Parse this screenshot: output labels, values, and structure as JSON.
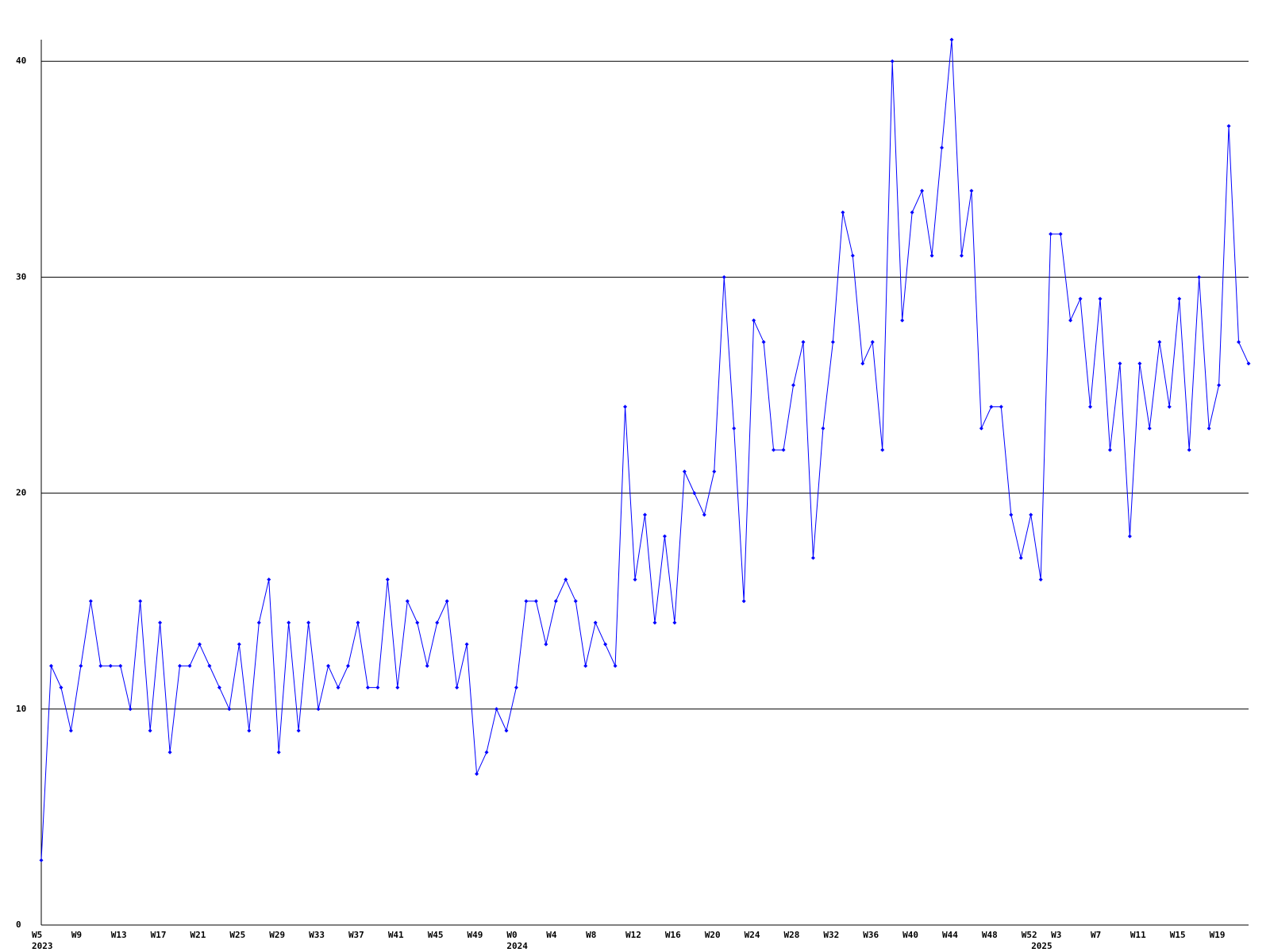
{
  "chart_data": {
    "type": "line",
    "categories": [
      "W5",
      null,
      null,
      null,
      "W9",
      null,
      null,
      null,
      "W13",
      null,
      null,
      null,
      "W17",
      null,
      null,
      null,
      "W21",
      null,
      null,
      null,
      "W25",
      null,
      null,
      null,
      "W29",
      null,
      null,
      null,
      "W33",
      null,
      null,
      null,
      "W37",
      null,
      null,
      null,
      "W41",
      null,
      null,
      null,
      "W45",
      null,
      null,
      null,
      "W49",
      null,
      null,
      null,
      "W0",
      null,
      null,
      null,
      "W4",
      null,
      null,
      null,
      "W8",
      null,
      null,
      null,
      "W12",
      null,
      null,
      null,
      "W16",
      null,
      null,
      null,
      "W20",
      null,
      null,
      null,
      "W24",
      null,
      null,
      null,
      "W28",
      null,
      null,
      null,
      "W32",
      null,
      null,
      null,
      "W36",
      null,
      null,
      null,
      "W40",
      null,
      null,
      null,
      "W44",
      null,
      null,
      null,
      "W48",
      null,
      null,
      null,
      "W52",
      null,
      null,
      "W3",
      null,
      null,
      null,
      "W7",
      null,
      null,
      null,
      "W11",
      null,
      null,
      null,
      "W15",
      null,
      null,
      null,
      "W19",
      null,
      null,
      null
    ],
    "year_labels": [
      "2023",
      null,
      null,
      null,
      null,
      null,
      null,
      null,
      null,
      null,
      null,
      null,
      null,
      null,
      null,
      null,
      null,
      null,
      null,
      null,
      null,
      null,
      null,
      null,
      null,
      null,
      null,
      null,
      null,
      null,
      null,
      null,
      null,
      null,
      null,
      null,
      null,
      null,
      null,
      null,
      null,
      null,
      null,
      null,
      null,
      null,
      null,
      null,
      "2024",
      null,
      null,
      null,
      null,
      null,
      null,
      null,
      null,
      null,
      null,
      null,
      null,
      null,
      null,
      null,
      null,
      null,
      null,
      null,
      null,
      null,
      null,
      null,
      null,
      null,
      null,
      null,
      null,
      null,
      null,
      null,
      null,
      null,
      null,
      null,
      null,
      null,
      null,
      null,
      null,
      null,
      null,
      null,
      null,
      null,
      null,
      null,
      null,
      null,
      null,
      null,
      null,
      "2025",
      null,
      null,
      null,
      null,
      null,
      null,
      null,
      null,
      null,
      null,
      null,
      null,
      null,
      null,
      null,
      null,
      null,
      null,
      null,
      null
    ],
    "values": [
      3,
      12,
      11,
      9,
      12,
      15,
      12,
      12,
      12,
      10,
      15,
      9,
      14,
      8,
      12,
      12,
      13,
      12,
      11,
      10,
      13,
      9,
      14,
      16,
      8,
      14,
      9,
      14,
      10,
      12,
      11,
      12,
      14,
      11,
      11,
      16,
      11,
      15,
      14,
      12,
      14,
      15,
      11,
      13,
      7,
      8,
      10,
      9,
      11,
      15,
      15,
      13,
      15,
      16,
      15,
      12,
      14,
      13,
      12,
      24,
      16,
      19,
      14,
      18,
      14,
      21,
      20,
      19,
      21,
      30,
      23,
      15,
      28,
      27,
      22,
      22,
      25,
      27,
      17,
      23,
      27,
      33,
      31,
      26,
      27,
      22,
      40,
      28,
      33,
      34,
      31,
      36,
      41,
      31,
      34,
      23,
      24,
      24,
      19,
      17,
      19,
      16,
      32,
      32,
      28,
      29,
      24,
      29,
      22,
      26,
      18,
      26,
      23,
      27,
      24,
      29,
      22,
      30,
      23,
      25,
      37,
      27,
      26
    ],
    "color": "#0000ff",
    "ylim": [
      0,
      41
    ],
    "yticks": [
      0,
      10,
      20,
      30,
      40
    ],
    "grid": true
  }
}
